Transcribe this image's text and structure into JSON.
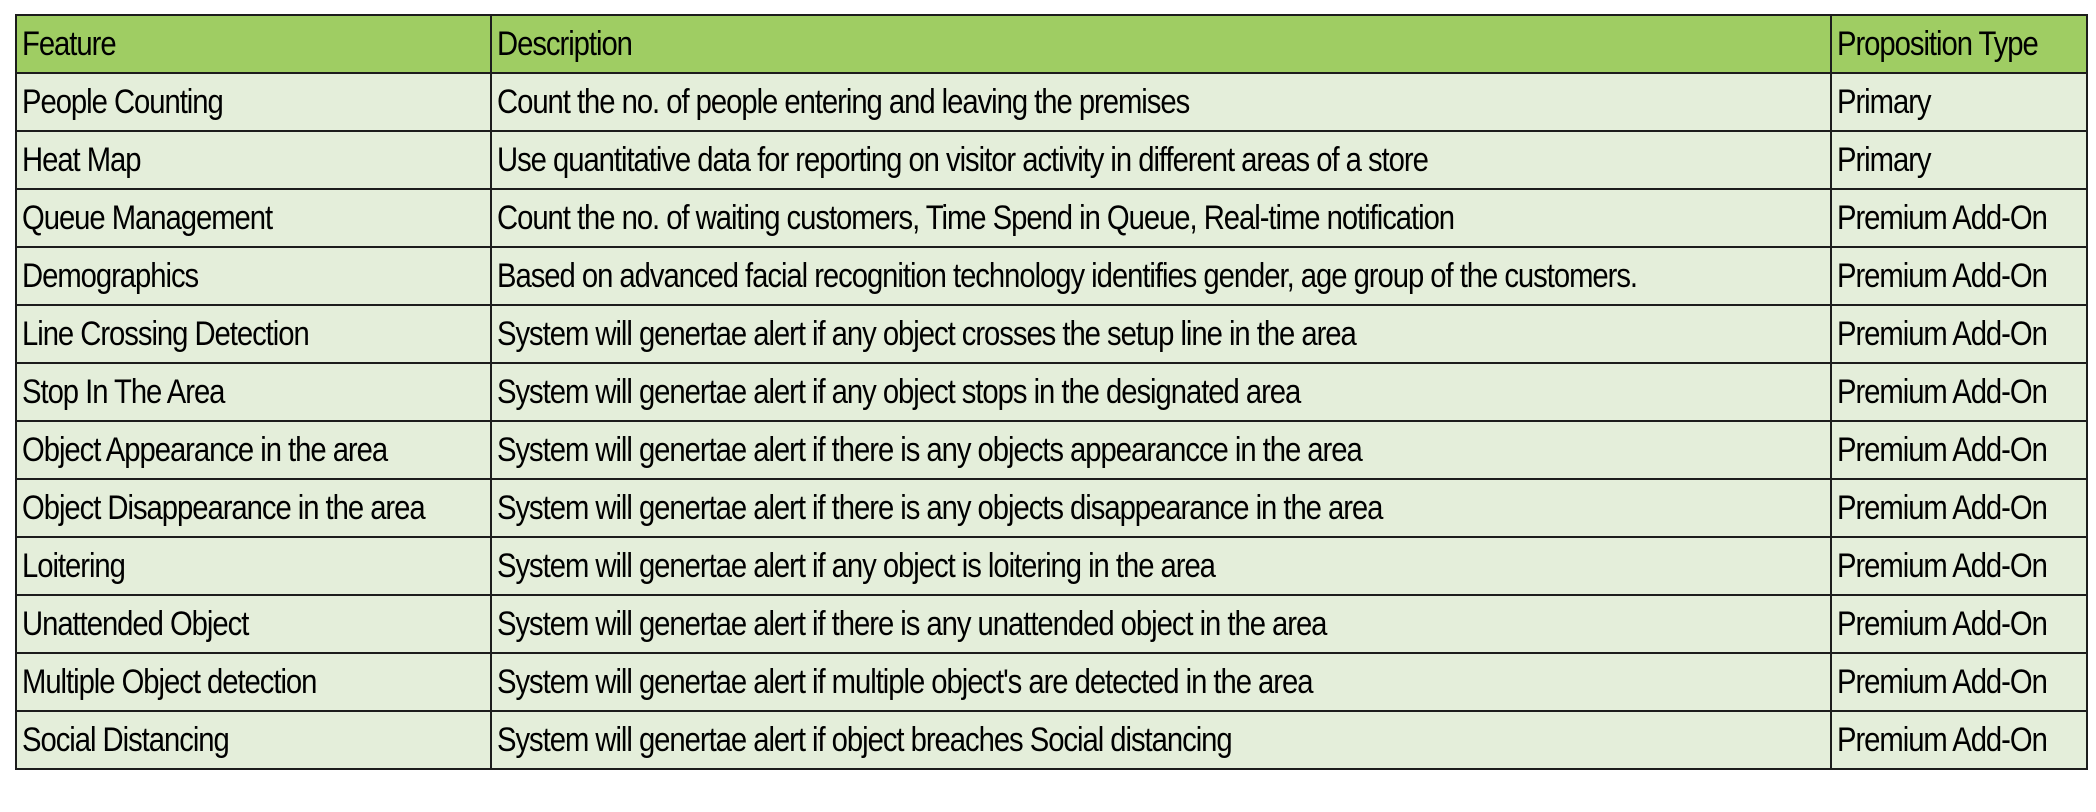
{
  "table": {
    "headers": [
      "Feature",
      "Description",
      "Proposition Type"
    ],
    "rows": [
      {
        "feature": "People Counting",
        "description": "Count the no. of people entering and leaving the premises",
        "type": "Primary"
      },
      {
        "feature": "Heat Map",
        "description": "Use quantitative data for reporting on visitor activity in different areas of a store",
        "type": "Primary"
      },
      {
        "feature": "Queue Management",
        "description": "Count the no. of waiting customers, Time Spend in Queue, Real-time notification",
        "type": "Premium Add-On"
      },
      {
        "feature": "Demographics",
        "description": "Based on advanced facial recognition technology identifies gender, age group of the customers.",
        "type": "Premium Add-On"
      },
      {
        "feature": "Line Crossing Detection",
        "description": "System will genertae alert if any object crosses the setup line in the area",
        "type": "Premium Add-On"
      },
      {
        "feature": "Stop In The Area",
        "description": "System will genertae alert if any object stops in the designated area",
        "type": "Premium Add-On"
      },
      {
        "feature": "Object Appearance in the area",
        "description": "System will genertae alert if there is any objects appearancce in the area",
        "type": "Premium Add-On"
      },
      {
        "feature": "Object Disappearance in the area",
        "description": "System will genertae alert if there is any objects disappearance in the area",
        "type": "Premium Add-On"
      },
      {
        "feature": "Loitering",
        "description": "System will genertae alert if any object is loitering in the area",
        "type": "Premium Add-On"
      },
      {
        "feature": "Unattended Object",
        "description": "System will genertae alert if there is any unattended object in the area",
        "type": "Premium Add-On"
      },
      {
        "feature": "Multiple Object detection",
        "description": "System will genertae alert if multiple object's are detected in the area",
        "type": "Premium Add-On"
      },
      {
        "feature": "Social Distancing",
        "description": "System will genertae alert if object breaches  Social distancing",
        "type": "Premium Add-On"
      }
    ]
  },
  "colors": {
    "header_bg": "#9fcd63",
    "row_bg": "#e4eeda",
    "border": "#1c1c1c"
  }
}
